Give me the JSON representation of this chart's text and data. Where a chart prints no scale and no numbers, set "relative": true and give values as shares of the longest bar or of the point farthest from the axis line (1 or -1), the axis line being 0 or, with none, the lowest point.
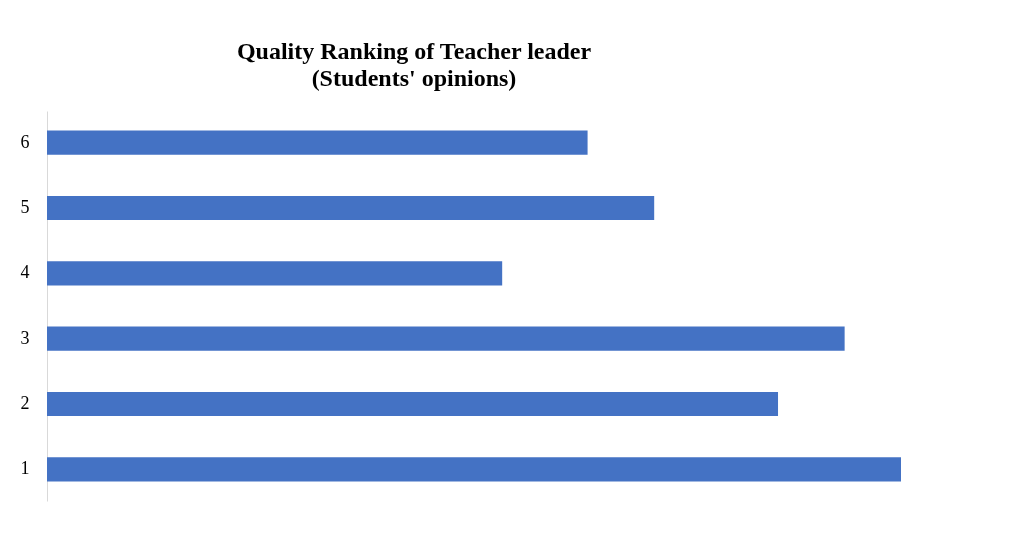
{
  "chart_data": {
    "type": "bar",
    "orientation": "horizontal",
    "relative": true,
    "title": "Quality Ranking of Teacher leader",
    "subtitle": "(Students' opinions)",
    "categories": [
      "6",
      "5",
      "4",
      "3",
      "2",
      "1"
    ],
    "values": [
      0.633,
      0.711,
      0.533,
      0.934,
      0.856,
      1
    ],
    "color": "#4472c4"
  }
}
